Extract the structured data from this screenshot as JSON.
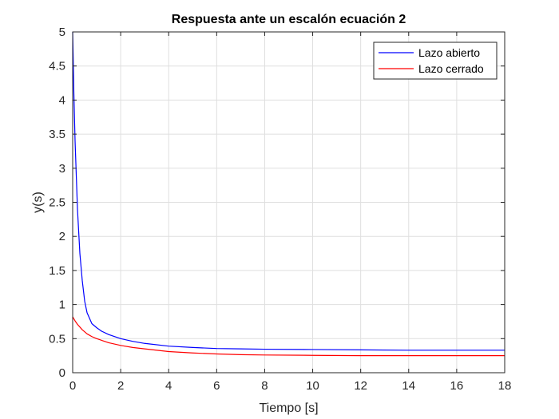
{
  "chart_data": {
    "type": "line",
    "title": "Respuesta ante un escalón ecuación 2",
    "xlabel": "Tiempo [s]",
    "ylabel": "y(s)",
    "xlim": [
      0,
      18
    ],
    "ylim": [
      0,
      5
    ],
    "xticks": [
      0,
      2,
      4,
      6,
      8,
      10,
      12,
      14,
      16,
      18
    ],
    "yticks": [
      0,
      0.5,
      1,
      1.5,
      2,
      2.5,
      3,
      3.5,
      4,
      4.5,
      5
    ],
    "xtick_labels": [
      "0",
      "2",
      "4",
      "6",
      "8",
      "10",
      "12",
      "14",
      "16",
      "18"
    ],
    "ytick_labels": [
      "0",
      "0.5",
      "1",
      "1.5",
      "2",
      "2.5",
      "3",
      "3.5",
      "4",
      "4.5",
      "5"
    ],
    "grid": true,
    "legend_position": "top-right",
    "series": [
      {
        "name": "Lazo abierto",
        "color": "#0000ff",
        "x": [
          0,
          0.05,
          0.1,
          0.2,
          0.3,
          0.4,
          0.5,
          0.6,
          0.8,
          1,
          1.2,
          1.5,
          2,
          2.5,
          3,
          4,
          5,
          6,
          7,
          8,
          10,
          12,
          14,
          16,
          18
        ],
        "y": [
          5.0,
          4.1,
          3.4,
          2.4,
          1.75,
          1.35,
          1.05,
          0.88,
          0.72,
          0.66,
          0.61,
          0.56,
          0.5,
          0.46,
          0.43,
          0.39,
          0.37,
          0.355,
          0.35,
          0.345,
          0.34,
          0.335,
          0.33,
          0.33,
          0.33
        ]
      },
      {
        "name": "Lazo cerrado",
        "color": "#ff0000",
        "x": [
          0,
          0.1,
          0.2,
          0.4,
          0.6,
          0.8,
          1,
          1.5,
          2,
          2.5,
          3,
          4,
          5,
          6,
          7,
          8,
          10,
          12,
          14,
          16,
          18
        ],
        "y": [
          0.82,
          0.76,
          0.71,
          0.63,
          0.57,
          0.53,
          0.5,
          0.44,
          0.4,
          0.37,
          0.35,
          0.31,
          0.29,
          0.275,
          0.265,
          0.26,
          0.255,
          0.25,
          0.25,
          0.25,
          0.25
        ]
      }
    ]
  }
}
